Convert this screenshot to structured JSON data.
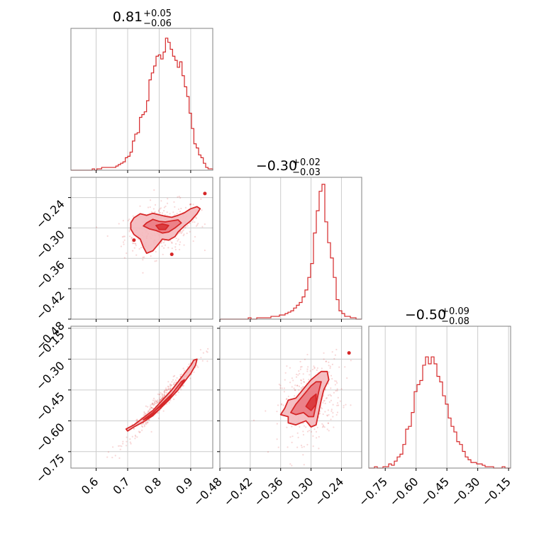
{
  "chart_data": {
    "type": "corner",
    "color": "#d62728",
    "fill_light": "#f4b8bd",
    "fill_mid": "#eb7a82",
    "grid": true,
    "parameters": [
      {
        "id": "p0",
        "range": [
          0.52,
          0.97
        ],
        "ticks": [
          0.6,
          0.7,
          0.8,
          0.9
        ],
        "tick_labels": [
          "0.6",
          "0.7",
          "0.8",
          "0.9"
        ],
        "title": {
          "median": "0.81",
          "plus": "+0.05",
          "minus": "−0.06"
        },
        "histogram": [
          0,
          0,
          0,
          0,
          0,
          0,
          0,
          0,
          0,
          0.01,
          0,
          0.01,
          0.01,
          0.02,
          0.02,
          0.02,
          0.02,
          0.02,
          0.02,
          0.03,
          0.04,
          0.05,
          0.06,
          0.09,
          0.1,
          0.13,
          0.21,
          0.26,
          0.27,
          0.38,
          0.4,
          0.42,
          0.5,
          0.65,
          0.7,
          0.75,
          0.82,
          0.83,
          0.8,
          0.85,
          0.95,
          0.92,
          0.87,
          0.82,
          0.79,
          0.74,
          0.78,
          0.68,
          0.6,
          0.53,
          0.41,
          0.3,
          0.19,
          0.16,
          0.11,
          0.09,
          0.05,
          0.02,
          0.01,
          0.01
        ],
        "histogram_peak_fraction": 0.9
      },
      {
        "id": "p1",
        "range": [
          -0.48,
          -0.2
        ],
        "ticks": [
          -0.48,
          -0.42,
          -0.36,
          -0.3,
          -0.24
        ],
        "tick_labels": [
          "−0.48",
          "−0.42",
          "−0.36",
          "−0.30",
          "−0.24"
        ],
        "title": {
          "median": "−0.30",
          "plus": "+0.02",
          "minus": "−0.03"
        },
        "histogram": [
          0,
          0,
          0,
          0,
          0,
          0,
          0,
          0,
          0,
          0,
          0.01,
          0,
          0,
          0.01,
          0.01,
          0.01,
          0.01,
          0.01,
          0.02,
          0.02,
          0.02,
          0.03,
          0.03,
          0.04,
          0.05,
          0.06,
          0.08,
          0.1,
          0.12,
          0.16,
          0.21,
          0.3,
          0.4,
          0.62,
          0.78,
          0.92,
          0.97,
          0.7,
          0.55,
          0.44,
          0.3,
          0.14,
          0.06,
          0.04,
          0.02,
          0.02,
          0.01,
          0.01,
          0,
          0
        ],
        "histogram_peak_fraction": 0.95
      },
      {
        "id": "p2",
        "range": [
          -0.83,
          -0.14
        ],
        "ticks": [
          -0.75,
          -0.6,
          -0.45,
          -0.3,
          -0.15
        ],
        "tick_labels": [
          "−0.75",
          "−0.60",
          "−0.45",
          "−0.30",
          "−0.15"
        ],
        "title": {
          "median": "−0.50",
          "plus": "+0.09",
          "minus": "−0.08"
        },
        "histogram": [
          0,
          0,
          0.01,
          0,
          0,
          0.01,
          0.01,
          0.03,
          0.02,
          0.05,
          0.08,
          0.1,
          0.17,
          0.28,
          0.3,
          0.4,
          0.55,
          0.6,
          0.63,
          0.74,
          0.8,
          0.75,
          0.8,
          0.75,
          0.66,
          0.62,
          0.52,
          0.46,
          0.36,
          0.3,
          0.26,
          0.19,
          0.17,
          0.12,
          0.08,
          0.06,
          0.04,
          0.04,
          0.03,
          0.03,
          0.02,
          0.01,
          0.01,
          0.01,
          0,
          0,
          0,
          0.01,
          0,
          0
        ],
        "histogram_peak_fraction": 0.9
      }
    ],
    "pairs": [
      {
        "x_param": "p0",
        "y_param": "p1",
        "contours": [
          [
            [
              0.72,
              -0.28
            ],
            [
              0.74,
              -0.272
            ],
            [
              0.76,
              -0.275
            ],
            [
              0.78,
              -0.271
            ],
            [
              0.8,
              -0.274
            ],
            [
              0.82,
              -0.277
            ],
            [
              0.84,
              -0.279
            ],
            [
              0.86,
              -0.275
            ],
            [
              0.88,
              -0.27
            ],
            [
              0.9,
              -0.262
            ],
            [
              0.92,
              -0.258
            ],
            [
              0.93,
              -0.262
            ],
            [
              0.92,
              -0.272
            ],
            [
              0.9,
              -0.286
            ],
            [
              0.88,
              -0.296
            ],
            [
              0.86,
              -0.308
            ],
            [
              0.85,
              -0.317
            ],
            [
              0.83,
              -0.324
            ],
            [
              0.81,
              -0.322
            ],
            [
              0.8,
              -0.33
            ],
            [
              0.78,
              -0.345
            ],
            [
              0.76,
              -0.35
            ],
            [
              0.75,
              -0.338
            ],
            [
              0.74,
              -0.322
            ],
            [
              0.72,
              -0.313
            ],
            [
              0.71,
              -0.302
            ],
            [
              0.71,
              -0.29
            ]
          ],
          [
            [
              0.76,
              -0.29
            ],
            [
              0.78,
              -0.283
            ],
            [
              0.8,
              -0.287
            ],
            [
              0.82,
              -0.288
            ],
            [
              0.84,
              -0.286
            ],
            [
              0.86,
              -0.284
            ],
            [
              0.87,
              -0.29
            ],
            [
              0.85,
              -0.3
            ],
            [
              0.83,
              -0.308
            ],
            [
              0.81,
              -0.31
            ],
            [
              0.79,
              -0.305
            ],
            [
              0.77,
              -0.302
            ],
            [
              0.75,
              -0.296
            ]
          ],
          [
            [
              0.79,
              -0.295
            ],
            [
              0.81,
              -0.292
            ],
            [
              0.83,
              -0.295
            ],
            [
              0.82,
              -0.303
            ],
            [
              0.8,
              -0.303
            ]
          ]
        ],
        "isolated": [
          [
            0.945,
            -0.232
          ],
          [
            0.72,
            -0.324
          ],
          [
            0.84,
            -0.352
          ]
        ],
        "scatter_spread": [
          0.06,
          0.025
        ],
        "scatter_center": [
          0.81,
          -0.3
        ]
      },
      {
        "x_param": "p0",
        "y_param": "p2",
        "contours": [
          [
            [
              0.695,
              -0.64
            ],
            [
              0.72,
              -0.62
            ],
            [
              0.75,
              -0.585
            ],
            [
              0.78,
              -0.55
            ],
            [
              0.81,
              -0.5
            ],
            [
              0.84,
              -0.45
            ],
            [
              0.87,
              -0.39
            ],
            [
              0.9,
              -0.33
            ],
            [
              0.91,
              -0.305
            ],
            [
              0.92,
              -0.3
            ],
            [
              0.915,
              -0.33
            ],
            [
              0.9,
              -0.37
            ],
            [
              0.87,
              -0.43
            ],
            [
              0.84,
              -0.48
            ],
            [
              0.81,
              -0.53
            ],
            [
              0.78,
              -0.575
            ],
            [
              0.75,
              -0.605
            ],
            [
              0.72,
              -0.63
            ],
            [
              0.7,
              -0.65
            ]
          ],
          [
            [
              0.75,
              -0.595
            ],
            [
              0.78,
              -0.56
            ],
            [
              0.81,
              -0.515
            ],
            [
              0.84,
              -0.47
            ],
            [
              0.87,
              -0.41
            ],
            [
              0.88,
              -0.4
            ],
            [
              0.86,
              -0.45
            ],
            [
              0.83,
              -0.5
            ],
            [
              0.8,
              -0.545
            ],
            [
              0.77,
              -0.58
            ]
          ],
          [
            [
              0.79,
              -0.545
            ],
            [
              0.82,
              -0.5
            ],
            [
              0.84,
              -0.47
            ],
            [
              0.83,
              -0.5
            ],
            [
              0.8,
              -0.535
            ]
          ]
        ],
        "isolated": [],
        "scatter_spread": [
          0.06,
          0.1
        ],
        "scatter_center": [
          0.81,
          -0.5
        ]
      },
      {
        "x_param": "p1",
        "y_param": "p2",
        "contours": [
          [
            [
              -0.345,
              -0.5
            ],
            [
              -0.33,
              -0.49
            ],
            [
              -0.32,
              -0.46
            ],
            [
              -0.31,
              -0.43
            ],
            [
              -0.3,
              -0.4
            ],
            [
              -0.29,
              -0.38
            ],
            [
              -0.28,
              -0.36
            ],
            [
              -0.268,
              -0.36
            ],
            [
              -0.265,
              -0.4
            ],
            [
              -0.275,
              -0.45
            ],
            [
              -0.28,
              -0.5
            ],
            [
              -0.285,
              -0.56
            ],
            [
              -0.29,
              -0.62
            ],
            [
              -0.3,
              -0.63
            ],
            [
              -0.31,
              -0.6
            ],
            [
              -0.32,
              -0.61
            ],
            [
              -0.33,
              -0.62
            ],
            [
              -0.345,
              -0.61
            ],
            [
              -0.345,
              -0.58
            ],
            [
              -0.36,
              -0.57
            ],
            [
              -0.352,
              -0.54
            ]
          ],
          [
            [
              -0.33,
              -0.52
            ],
            [
              -0.32,
              -0.49
            ],
            [
              -0.31,
              -0.46
            ],
            [
              -0.3,
              -0.43
            ],
            [
              -0.29,
              -0.41
            ],
            [
              -0.28,
              -0.41
            ],
            [
              -0.285,
              -0.46
            ],
            [
              -0.29,
              -0.52
            ],
            [
              -0.295,
              -0.58
            ],
            [
              -0.305,
              -0.58
            ],
            [
              -0.315,
              -0.56
            ],
            [
              -0.33,
              -0.57
            ],
            [
              -0.34,
              -0.56
            ]
          ],
          [
            [
              -0.31,
              -0.53
            ],
            [
              -0.3,
              -0.49
            ],
            [
              -0.29,
              -0.47
            ],
            [
              -0.29,
              -0.52
            ],
            [
              -0.3,
              -0.55
            ]
          ]
        ],
        "isolated": [
          [
            -0.225,
            -0.27
          ]
        ],
        "scatter_spread": [
          0.03,
          0.1
        ],
        "scatter_center": [
          -0.3,
          -0.5
        ]
      }
    ]
  }
}
